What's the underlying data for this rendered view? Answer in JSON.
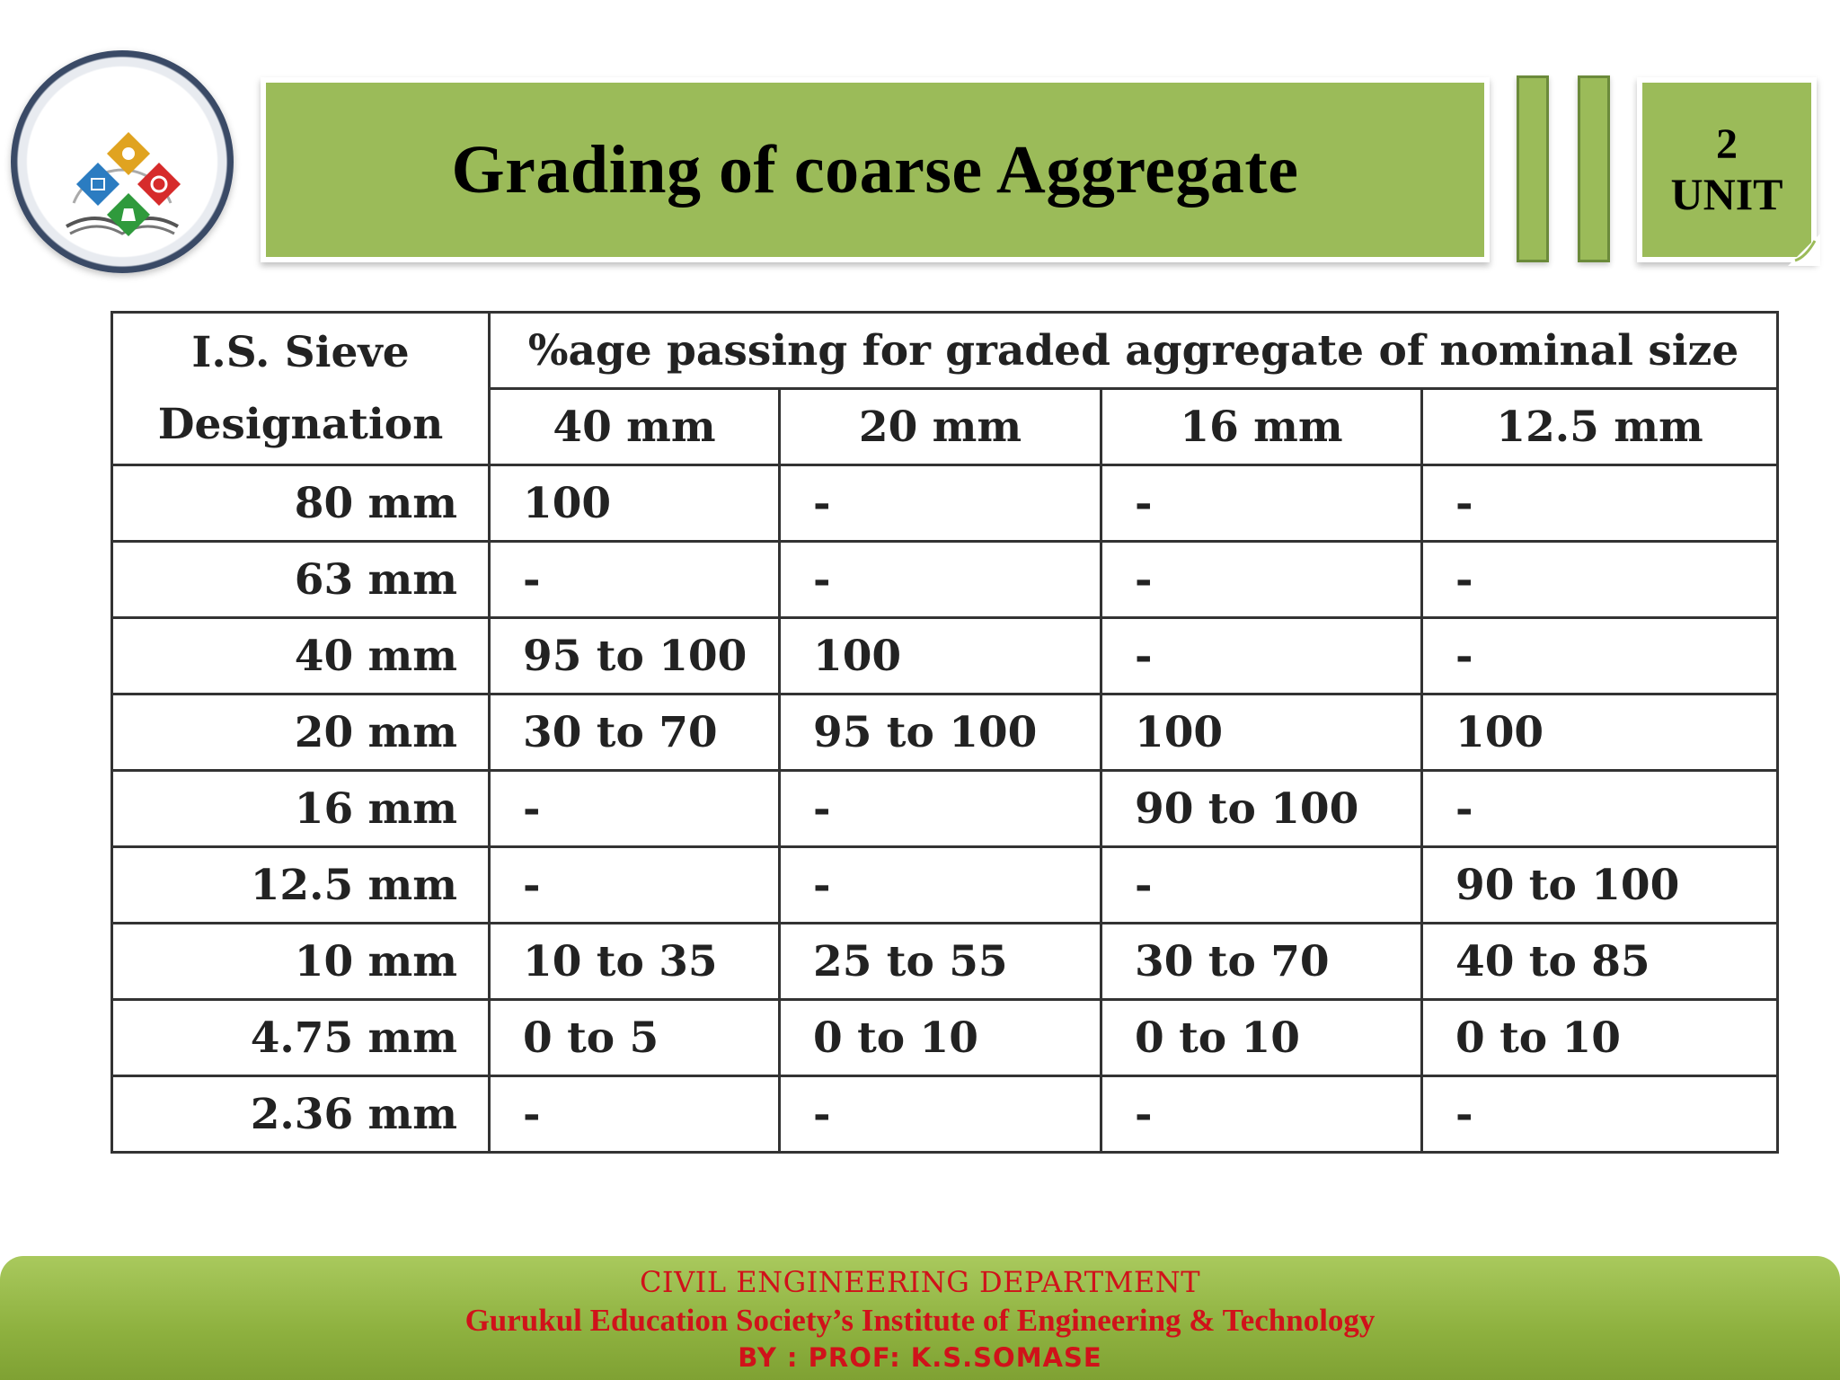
{
  "header": {
    "title": "Grading of coarse Aggregate",
    "unit_number": "2",
    "unit_label": "UNIT"
  },
  "table": {
    "sieve_header_line1": "I.S. Sieve",
    "sieve_header_line2": "Designation",
    "group_header": "%age passing for graded aggregate of nominal size",
    "columns": [
      "40 mm",
      "20 mm",
      "16 mm",
      "12.5 mm"
    ],
    "rows": [
      {
        "sieve": "80 mm",
        "values": [
          "100",
          "-",
          "-",
          "-"
        ]
      },
      {
        "sieve": "63 mm",
        "values": [
          "-",
          "-",
          "-",
          "-"
        ]
      },
      {
        "sieve": "40 mm",
        "values": [
          "95 to 100",
          "100",
          "-",
          "-"
        ]
      },
      {
        "sieve": "20 mm",
        "values": [
          "30 to 70",
          "95 to 100",
          "100",
          "100"
        ]
      },
      {
        "sieve": "16 mm",
        "values": [
          "-",
          "-",
          "90 to 100",
          "-"
        ]
      },
      {
        "sieve": "12.5 mm",
        "values": [
          "-",
          "-",
          "-",
          "90 to 100"
        ]
      },
      {
        "sieve": "10 mm",
        "values": [
          "10 to 35",
          "25 to 55",
          "30 to 70",
          "40 to 85"
        ]
      },
      {
        "sieve": "4.75 mm",
        "values": [
          "0 to 5",
          "0 to 10",
          "0 to 10",
          "0 to 10"
        ]
      },
      {
        "sieve": "2.36 mm",
        "values": [
          "-",
          "-",
          "-",
          "-"
        ]
      }
    ]
  },
  "footer": {
    "department": "CIVIL ENGINEERING DEPARTMENT",
    "institute": "Gurukul Education Society’s Institute of Engineering & Technology",
    "byline": "BY : PROF: K.S.SOMASE"
  },
  "colors": {
    "accent_green": "#9bbb59",
    "footer_text": "#d0121a"
  }
}
